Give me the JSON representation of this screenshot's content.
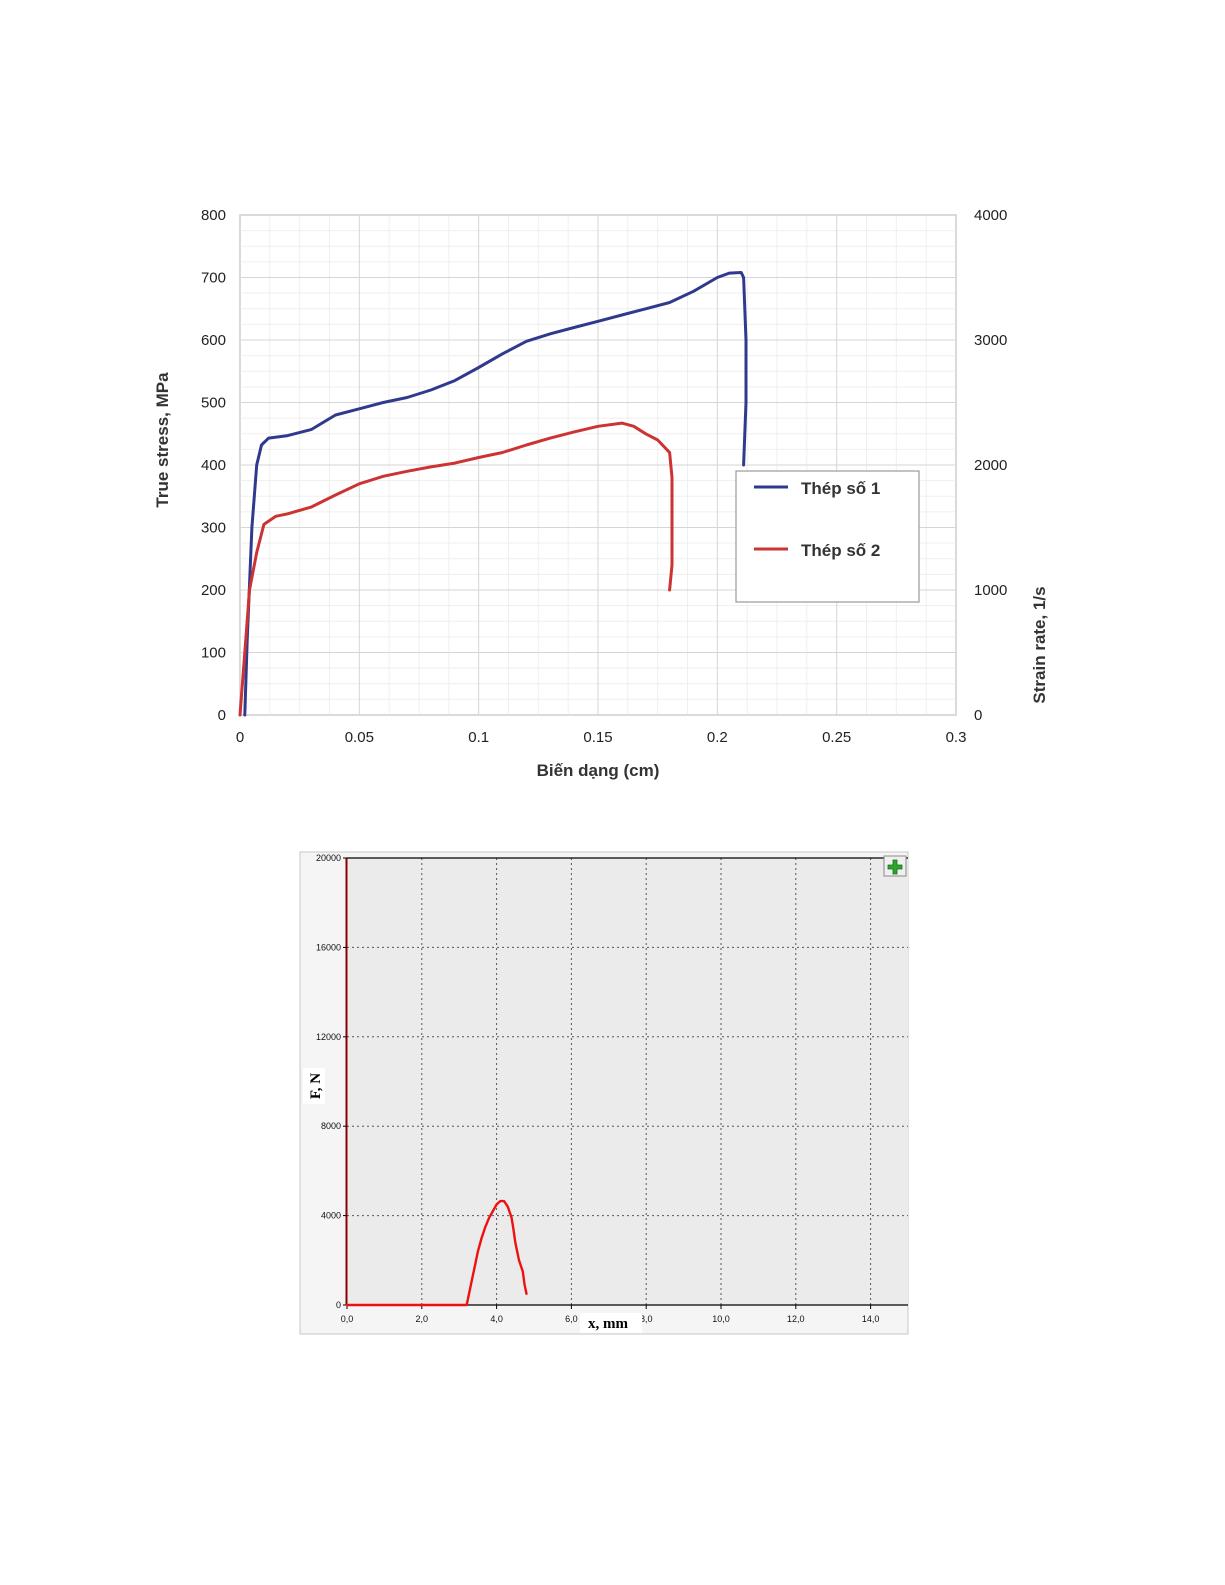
{
  "chart_data": [
    {
      "type": "line",
      "xlabel": "Biến dạng (cm)",
      "ylabel": "True stress, MPa",
      "y2label": "Strain rate, 1/s",
      "xlim": [
        0,
        0.3
      ],
      "ylim": [
        0,
        800
      ],
      "y2lim": [
        0,
        4000
      ],
      "x_ticks": [
        "0",
        "0.05",
        "0.1",
        "0.15",
        "0.2",
        "0.25",
        "0.3"
      ],
      "y_ticks": [
        "0",
        "100",
        "200",
        "300",
        "400",
        "500",
        "600",
        "700",
        "800"
      ],
      "y2_ticks": [
        "0",
        "1000",
        "2000",
        "3000",
        "4000"
      ],
      "grid": true,
      "legend_position": "right",
      "series": [
        {
          "name": "Thép số 1",
          "color": "#2f3a8f",
          "points": [
            [
              0.002,
              0
            ],
            [
              0.003,
              120
            ],
            [
              0.005,
              300
            ],
            [
              0.007,
              400
            ],
            [
              0.009,
              432
            ],
            [
              0.012,
              443
            ],
            [
              0.02,
              447
            ],
            [
              0.03,
              457
            ],
            [
              0.04,
              480
            ],
            [
              0.05,
              490
            ],
            [
              0.06,
              500
            ],
            [
              0.07,
              508
            ],
            [
              0.08,
              520
            ],
            [
              0.09,
              535
            ],
            [
              0.1,
              556
            ],
            [
              0.11,
              578
            ],
            [
              0.12,
              598
            ],
            [
              0.13,
              610
            ],
            [
              0.14,
              620
            ],
            [
              0.15,
              630
            ],
            [
              0.16,
              640
            ],
            [
              0.17,
              650
            ],
            [
              0.18,
              660
            ],
            [
              0.19,
              678
            ],
            [
              0.2,
              700
            ],
            [
              0.205,
              707
            ],
            [
              0.21,
              708
            ],
            [
              0.211,
              700
            ],
            [
              0.212,
              600
            ],
            [
              0.212,
              500
            ],
            [
              0.211,
              400
            ]
          ]
        },
        {
          "name": "Thép số 2",
          "color": "#cc3333",
          "points": [
            [
              0,
              0
            ],
            [
              0.002,
              100
            ],
            [
              0.004,
              200
            ],
            [
              0.007,
              260
            ],
            [
              0.01,
              305
            ],
            [
              0.015,
              318
            ],
            [
              0.02,
              322
            ],
            [
              0.03,
              333
            ],
            [
              0.04,
              352
            ],
            [
              0.05,
              370
            ],
            [
              0.06,
              382
            ],
            [
              0.07,
              390
            ],
            [
              0.08,
              397
            ],
            [
              0.09,
              403
            ],
            [
              0.1,
              412
            ],
            [
              0.11,
              420
            ],
            [
              0.12,
              432
            ],
            [
              0.13,
              443
            ],
            [
              0.14,
              453
            ],
            [
              0.15,
              462
            ],
            [
              0.16,
              467
            ],
            [
              0.165,
              462
            ],
            [
              0.17,
              450
            ],
            [
              0.175,
              440
            ],
            [
              0.18,
              420
            ],
            [
              0.181,
              380
            ],
            [
              0.181,
              300
            ],
            [
              0.181,
              240
            ],
            [
              0.18,
              200
            ]
          ]
        }
      ]
    },
    {
      "type": "line",
      "xlabel": "x, mm",
      "ylabel": "F, N",
      "xlim": [
        0,
        15
      ],
      "ylim": [
        0,
        20000
      ],
      "x_ticks": [
        "0,0",
        "2,0",
        "4,0",
        "6,0",
        "8,0",
        "10,0",
        "12,0",
        "14,0"
      ],
      "y_ticks": [
        "0",
        "4000",
        "8000",
        "12000",
        "16000",
        "20000"
      ],
      "grid": true,
      "series": [
        {
          "color": "#ee1111",
          "points": [
            [
              0,
              0
            ],
            [
              3.2,
              0
            ],
            [
              3.3,
              800
            ],
            [
              3.4,
              1600
            ],
            [
              3.5,
              2400
            ],
            [
              3.6,
              3000
            ],
            [
              3.7,
              3500
            ],
            [
              3.8,
              3900
            ],
            [
              3.9,
              4200
            ],
            [
              4.0,
              4500
            ],
            [
              4.1,
              4650
            ],
            [
              4.2,
              4650
            ],
            [
              4.3,
              4400
            ],
            [
              4.4,
              3900
            ],
            [
              4.45,
              3400
            ],
            [
              4.5,
              2800
            ],
            [
              4.6,
              2000
            ],
            [
              4.7,
              1500
            ],
            [
              4.75,
              900
            ],
            [
              4.8,
              500
            ]
          ]
        }
      ]
    }
  ]
}
